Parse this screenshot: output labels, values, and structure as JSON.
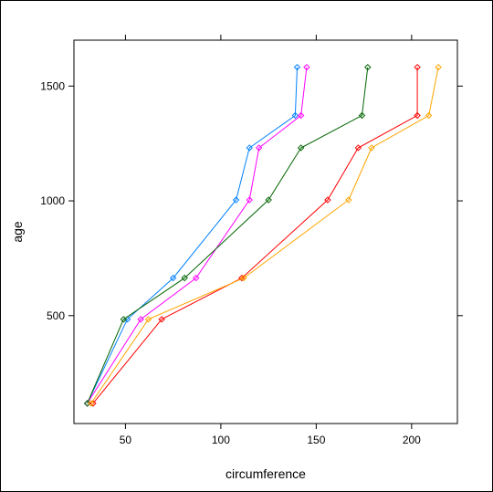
{
  "chart_data": {
    "type": "line",
    "xlabel": "circumference",
    "ylabel": "age",
    "xlim": [
      23,
      224
    ],
    "ylim": [
      30,
      1700
    ],
    "x_ticks": [
      50,
      100,
      150,
      200
    ],
    "y_ticks": [
      500,
      1000,
      1500
    ],
    "grid": false,
    "legend": "none",
    "marker": "diamond-circle",
    "series": [
      {
        "color": "#0080ff",
        "x": [
          30,
          51,
          75,
          108,
          115,
          139,
          140
        ],
        "y": [
          118,
          484,
          664,
          1004,
          1231,
          1372,
          1582
        ]
      },
      {
        "color": "#ff00ff",
        "x": [
          30,
          58,
          87,
          115,
          120,
          142,
          145
        ],
        "y": [
          118,
          484,
          664,
          1004,
          1231,
          1372,
          1582
        ]
      },
      {
        "color": "#006400",
        "x": [
          30,
          49,
          81,
          125,
          142,
          174,
          177
        ],
        "y": [
          118,
          484,
          664,
          1004,
          1231,
          1372,
          1582
        ]
      },
      {
        "color": "#ff0000",
        "x": [
          33,
          69,
          111,
          156,
          172,
          203,
          203
        ],
        "y": [
          118,
          484,
          664,
          1004,
          1231,
          1372,
          1582
        ]
      },
      {
        "color": "#ffa500",
        "x": [
          32,
          62,
          112,
          167,
          179,
          209,
          214
        ],
        "y": [
          118,
          484,
          664,
          1004,
          1231,
          1372,
          1582
        ]
      }
    ]
  }
}
